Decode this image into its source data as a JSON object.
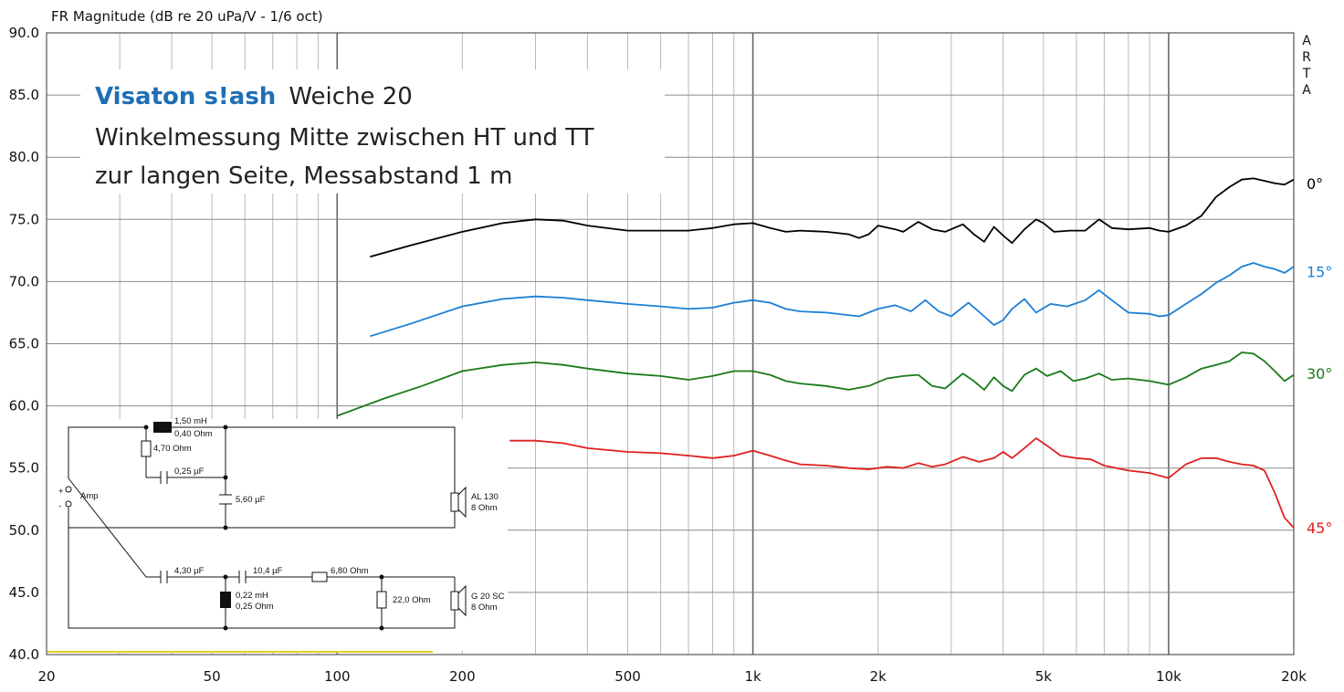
{
  "chart_data": {
    "type": "line",
    "title": "FR Magnitude (dB re 20 uPa/V - 1/6 oct)",
    "watermark": [
      "A",
      "R",
      "T",
      "A"
    ],
    "xscale": "log",
    "xlim": [
      20,
      20000
    ],
    "ylim": [
      40,
      90
    ],
    "grid": true,
    "x_ticks": [
      {
        "value": 20,
        "label": "20"
      },
      {
        "value": 50,
        "label": "50"
      },
      {
        "value": 100,
        "label": "100"
      },
      {
        "value": 200,
        "label": "200"
      },
      {
        "value": 500,
        "label": "500"
      },
      {
        "value": 1000,
        "label": "1k"
      },
      {
        "value": 2000,
        "label": "2k"
      },
      {
        "value": 5000,
        "label": "5k"
      },
      {
        "value": 10000,
        "label": "10k"
      },
      {
        "value": 20000,
        "label": "20k"
      }
    ],
    "y_ticks": [
      "40.0",
      "45.0",
      "50.0",
      "55.0",
      "60.0",
      "65.0",
      "70.0",
      "75.0",
      "80.0",
      "85.0",
      "90.0"
    ],
    "annotation": {
      "brand": "Visaton s!ash",
      "line1": "Weiche 20",
      "line2": "Winkelmessung Mitte zwischen HT und TT",
      "line3": "zur langen Seite, Messabstand 1 m"
    },
    "series": [
      {
        "name": "0°",
        "color": "#000000",
        "label_y": 77.9,
        "points": [
          [
            120,
            72.0
          ],
          [
            150,
            72.9
          ],
          [
            200,
            74.0
          ],
          [
            250,
            74.7
          ],
          [
            300,
            75.0
          ],
          [
            350,
            74.9
          ],
          [
            400,
            74.5
          ],
          [
            500,
            74.1
          ],
          [
            600,
            74.1
          ],
          [
            700,
            74.1
          ],
          [
            800,
            74.3
          ],
          [
            900,
            74.6
          ],
          [
            1000,
            74.7
          ],
          [
            1100,
            74.3
          ],
          [
            1200,
            74.0
          ],
          [
            1300,
            74.1
          ],
          [
            1500,
            74.0
          ],
          [
            1700,
            73.8
          ],
          [
            1800,
            73.5
          ],
          [
            1900,
            73.8
          ],
          [
            2000,
            74.5
          ],
          [
            2200,
            74.2
          ],
          [
            2300,
            74.0
          ],
          [
            2500,
            74.8
          ],
          [
            2700,
            74.2
          ],
          [
            2900,
            74.0
          ],
          [
            3200,
            74.6
          ],
          [
            3400,
            73.8
          ],
          [
            3600,
            73.2
          ],
          [
            3800,
            74.4
          ],
          [
            4000,
            73.7
          ],
          [
            4200,
            73.1
          ],
          [
            4500,
            74.2
          ],
          [
            4800,
            75.0
          ],
          [
            5000,
            74.7
          ],
          [
            5300,
            74.0
          ],
          [
            5800,
            74.1
          ],
          [
            6300,
            74.1
          ],
          [
            6800,
            75.0
          ],
          [
            7300,
            74.3
          ],
          [
            8000,
            74.2
          ],
          [
            9000,
            74.3
          ],
          [
            9500,
            74.1
          ],
          [
            10000,
            74.0
          ],
          [
            11000,
            74.5
          ],
          [
            12000,
            75.3
          ],
          [
            13000,
            76.8
          ],
          [
            14000,
            77.6
          ],
          [
            15000,
            78.2
          ],
          [
            16000,
            78.3
          ],
          [
            17000,
            78.1
          ],
          [
            18000,
            77.9
          ],
          [
            19000,
            77.8
          ],
          [
            20000,
            78.2
          ]
        ]
      },
      {
        "name": "15°",
        "color": "#1c7fd6",
        "label_y": 70.8,
        "points": [
          [
            120,
            65.6
          ],
          [
            150,
            66.6
          ],
          [
            200,
            68.0
          ],
          [
            250,
            68.6
          ],
          [
            300,
            68.8
          ],
          [
            350,
            68.7
          ],
          [
            400,
            68.5
          ],
          [
            500,
            68.2
          ],
          [
            600,
            68.0
          ],
          [
            700,
            67.8
          ],
          [
            800,
            67.9
          ],
          [
            900,
            68.3
          ],
          [
            1000,
            68.5
          ],
          [
            1100,
            68.3
          ],
          [
            1200,
            67.8
          ],
          [
            1300,
            67.6
          ],
          [
            1500,
            67.5
          ],
          [
            1800,
            67.2
          ],
          [
            2000,
            67.8
          ],
          [
            2200,
            68.1
          ],
          [
            2400,
            67.6
          ],
          [
            2600,
            68.5
          ],
          [
            2800,
            67.6
          ],
          [
            3000,
            67.2
          ],
          [
            3300,
            68.3
          ],
          [
            3600,
            67.2
          ],
          [
            3800,
            66.5
          ],
          [
            4000,
            66.9
          ],
          [
            4200,
            67.8
          ],
          [
            4500,
            68.6
          ],
          [
            4800,
            67.5
          ],
          [
            5200,
            68.2
          ],
          [
            5700,
            68.0
          ],
          [
            6300,
            68.5
          ],
          [
            6800,
            69.3
          ],
          [
            7300,
            68.5
          ],
          [
            8000,
            67.5
          ],
          [
            9000,
            67.4
          ],
          [
            9500,
            67.2
          ],
          [
            10000,
            67.3
          ],
          [
            11000,
            68.2
          ],
          [
            12000,
            69.0
          ],
          [
            13000,
            69.9
          ],
          [
            14000,
            70.5
          ],
          [
            15000,
            71.2
          ],
          [
            16000,
            71.5
          ],
          [
            17000,
            71.2
          ],
          [
            18000,
            71.0
          ],
          [
            19000,
            70.7
          ],
          [
            20000,
            71.2
          ]
        ]
      },
      {
        "name": "30°",
        "color": "#1a7a1a",
        "label_y": 62.6,
        "points": [
          [
            100,
            59.2
          ],
          [
            130,
            60.6
          ],
          [
            160,
            61.6
          ],
          [
            200,
            62.8
          ],
          [
            250,
            63.3
          ],
          [
            300,
            63.5
          ],
          [
            350,
            63.3
          ],
          [
            400,
            63.0
          ],
          [
            500,
            62.6
          ],
          [
            600,
            62.4
          ],
          [
            700,
            62.1
          ],
          [
            800,
            62.4
          ],
          [
            900,
            62.8
          ],
          [
            1000,
            62.8
          ],
          [
            1100,
            62.5
          ],
          [
            1200,
            62.0
          ],
          [
            1300,
            61.8
          ],
          [
            1500,
            61.6
          ],
          [
            1700,
            61.3
          ],
          [
            1900,
            61.6
          ],
          [
            2100,
            62.2
          ],
          [
            2300,
            62.4
          ],
          [
            2500,
            62.5
          ],
          [
            2700,
            61.6
          ],
          [
            2900,
            61.4
          ],
          [
            3200,
            62.6
          ],
          [
            3400,
            62.0
          ],
          [
            3600,
            61.3
          ],
          [
            3800,
            62.3
          ],
          [
            4000,
            61.6
          ],
          [
            4200,
            61.2
          ],
          [
            4500,
            62.5
          ],
          [
            4800,
            63.0
          ],
          [
            5100,
            62.4
          ],
          [
            5500,
            62.8
          ],
          [
            5900,
            62.0
          ],
          [
            6300,
            62.2
          ],
          [
            6800,
            62.6
          ],
          [
            7300,
            62.1
          ],
          [
            8000,
            62.2
          ],
          [
            9000,
            62.0
          ],
          [
            10000,
            61.7
          ],
          [
            11000,
            62.3
          ],
          [
            12000,
            63.0
          ],
          [
            13000,
            63.3
          ],
          [
            14000,
            63.6
          ],
          [
            15000,
            64.3
          ],
          [
            16000,
            64.2
          ],
          [
            17000,
            63.6
          ],
          [
            18000,
            62.8
          ],
          [
            19000,
            62.0
          ],
          [
            20000,
            62.5
          ]
        ]
      },
      {
        "name": "45°",
        "color": "#e02020",
        "label_y": 50.2,
        "points": [
          [
            260,
            57.2
          ],
          [
            300,
            57.2
          ],
          [
            350,
            57.0
          ],
          [
            400,
            56.6
          ],
          [
            500,
            56.3
          ],
          [
            600,
            56.2
          ],
          [
            700,
            56.0
          ],
          [
            800,
            55.8
          ],
          [
            900,
            56.0
          ],
          [
            1000,
            56.4
          ],
          [
            1100,
            56.0
          ],
          [
            1200,
            55.6
          ],
          [
            1300,
            55.3
          ],
          [
            1500,
            55.2
          ],
          [
            1700,
            55.0
          ],
          [
            1900,
            54.9
          ],
          [
            2100,
            55.1
          ],
          [
            2300,
            55.0
          ],
          [
            2500,
            55.4
          ],
          [
            2700,
            55.1
          ],
          [
            2900,
            55.3
          ],
          [
            3200,
            55.9
          ],
          [
            3500,
            55.5
          ],
          [
            3800,
            55.8
          ],
          [
            4000,
            56.3
          ],
          [
            4200,
            55.8
          ],
          [
            4500,
            56.6
          ],
          [
            4800,
            57.4
          ],
          [
            5100,
            56.8
          ],
          [
            5500,
            56.0
          ],
          [
            6000,
            55.8
          ],
          [
            6500,
            55.7
          ],
          [
            7000,
            55.2
          ],
          [
            8000,
            54.8
          ],
          [
            9000,
            54.6
          ],
          [
            10000,
            54.2
          ],
          [
            11000,
            55.3
          ],
          [
            12000,
            55.8
          ],
          [
            13000,
            55.8
          ],
          [
            14000,
            55.5
          ],
          [
            15000,
            55.3
          ],
          [
            16000,
            55.2
          ],
          [
            17000,
            54.8
          ],
          [
            18000,
            53.0
          ],
          [
            19000,
            51.0
          ],
          [
            20000,
            50.2
          ]
        ]
      }
    ]
  },
  "schematic": {
    "input": "Amp",
    "inputPlus": "+",
    "inputMinus": "-",
    "L1_value": "1,50 mH",
    "L1_res": "0,40 Ohm",
    "R1": "4,70 Ohm",
    "C1": "0,25 µF",
    "C2": "5,60 µF",
    "spk1_name": "AL 130",
    "spk1_imp": "8 Ohm",
    "C3": "4,30 µF",
    "C4": "10,4 µF",
    "R2": "6,80 Ohm",
    "L2_value": "0,22 mH",
    "L2_res": "0,25 Ohm",
    "R3": "22,0 Ohm",
    "spk2_name": "G 20 SC",
    "spk2_imp": "8 Ohm"
  }
}
